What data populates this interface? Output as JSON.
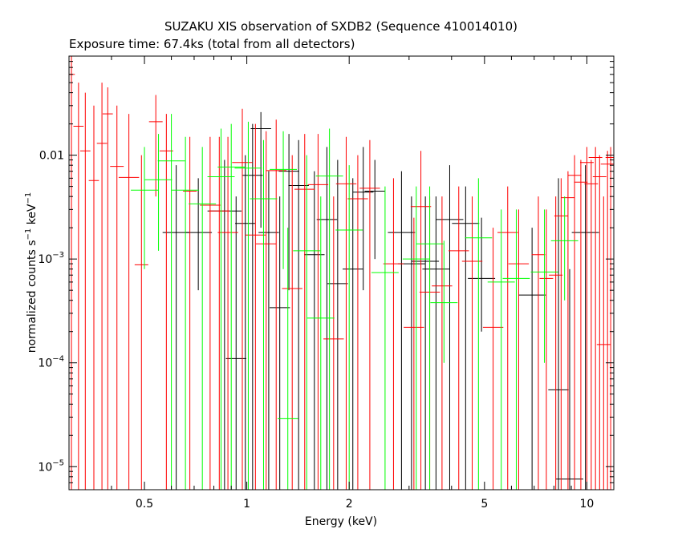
{
  "chart_data": {
    "type": "scatter",
    "title": "SUZAKU XIS observation of SXDB2 (Sequence 410014010)",
    "subtitle": "Exposure time: 67.4ks (total from all detectors)",
    "xlabel": "Energy (keV)",
    "ylabel": {
      "base": "normalized counts s",
      "exp1": "−1",
      "mid": " keV",
      "exp2": "−1"
    },
    "x_scale": "log",
    "y_scale": "log",
    "xlim": [
      0.3,
      12
    ],
    "ylim": [
      6e-06,
      0.09
    ],
    "x_ticks": [
      {
        "value": 0.5,
        "label": "0.5"
      },
      {
        "value": 1,
        "label": "1"
      },
      {
        "value": 2,
        "label": "2"
      },
      {
        "value": 5,
        "label": "5"
      },
      {
        "value": 10,
        "label": "10"
      }
    ],
    "y_ticks": [
      {
        "value": 1e-05,
        "base": "10",
        "exp": "−5"
      },
      {
        "value": 0.0001,
        "base": "10",
        "exp": "−4"
      },
      {
        "value": 0.001,
        "base": "10",
        "exp": "−3"
      },
      {
        "value": 0.01,
        "base": "0.01",
        "exp": ""
      }
    ],
    "grid": false,
    "series": [
      {
        "color": "#000000",
        "points": [
          [
            0.62,
            0.0018,
            0.04,
            null,
            0.008
          ],
          [
            0.72,
            0.0018,
            0.04,
            0.0005,
            0.006
          ],
          [
            0.86,
            0.0029,
            0.05,
            null,
            0.009
          ],
          [
            0.93,
            0.00011,
            0.03,
            null,
            0.004
          ],
          [
            0.99,
            0.0022,
            0.03,
            null,
            0.01
          ],
          [
            1.04,
            0.0064,
            0.03,
            null,
            0.02
          ],
          [
            1.1,
            0.018,
            0.03,
            0.002,
            0.026
          ],
          [
            1.16,
            0.0018,
            0.03,
            null,
            0.007
          ],
          [
            1.25,
            0.00034,
            0.03,
            null,
            0.004
          ],
          [
            1.33,
            0.007,
            0.03,
            0.0005,
            0.016
          ],
          [
            1.42,
            0.0051,
            0.03,
            null,
            0.014
          ],
          [
            1.58,
            0.0011,
            0.03,
            null,
            0.007
          ],
          [
            1.72,
            0.0024,
            0.03,
            null,
            0.012
          ],
          [
            1.85,
            0.00058,
            0.03,
            null,
            0.009
          ],
          [
            2.05,
            0.0008,
            0.03,
            null,
            0.006
          ],
          [
            2.2,
            0.0044,
            0.03,
            0.0005,
            0.012
          ],
          [
            2.38,
            0.0045,
            0.03,
            0.001,
            0.009
          ],
          [
            2.85,
            0.0018,
            0.04,
            null,
            0.007
          ],
          [
            3.05,
            0.0009,
            0.04,
            null,
            0.004
          ],
          [
            3.35,
            0.00095,
            0.04,
            null,
            0.004
          ],
          [
            3.6,
            0.0008,
            0.04,
            null,
            0.004
          ],
          [
            3.95,
            0.0024,
            0.04,
            null,
            0.008
          ],
          [
            4.4,
            0.0022,
            0.04,
            null,
            0.005
          ],
          [
            4.9,
            0.00065,
            0.04,
            0.0002,
            0.0025
          ],
          [
            6.9,
            0.00045,
            0.04,
            null,
            0.002
          ],
          [
            8.25,
            5.5e-05,
            0.03,
            null,
            0.006
          ],
          [
            8.9,
            7.6e-06,
            0.04,
            null,
            0.0008
          ],
          [
            9.9,
            0.0018,
            0.04,
            null,
            0.008
          ]
        ]
      },
      {
        "color": "#ff0000",
        "points": [
          [
            0.305,
            0.06,
            0.01,
            null,
            0.09
          ],
          [
            0.32,
            0.019,
            0.015,
            null,
            0.05
          ],
          [
            0.335,
            0.011,
            0.015,
            null,
            0.04
          ],
          [
            0.355,
            0.0057,
            0.015,
            null,
            0.03
          ],
          [
            0.375,
            0.013,
            0.015,
            null,
            0.05
          ],
          [
            0.39,
            0.025,
            0.015,
            null,
            0.045
          ],
          [
            0.415,
            0.0078,
            0.02,
            null,
            0.03
          ],
          [
            0.45,
            0.0061,
            0.03,
            null,
            0.025
          ],
          [
            0.49,
            0.00088,
            0.02,
            null,
            0.01
          ],
          [
            0.54,
            0.021,
            0.02,
            0.004,
            0.038
          ],
          [
            0.58,
            0.011,
            0.02,
            null,
            0.025
          ],
          [
            0.68,
            0.0045,
            0.02,
            null,
            0.015
          ],
          [
            0.78,
            0.0033,
            0.03,
            null,
            0.015
          ],
          [
            0.83,
            0.0029,
            0.03,
            null,
            0.015
          ],
          [
            0.88,
            0.0018,
            0.03,
            null,
            0.015
          ],
          [
            0.97,
            0.0085,
            0.03,
            null,
            0.028
          ],
          [
            1.06,
            0.0017,
            0.03,
            null,
            0.02
          ],
          [
            1.14,
            0.0014,
            0.03,
            null,
            0.017
          ],
          [
            1.22,
            0.0071,
            0.03,
            null,
            0.022
          ],
          [
            1.36,
            0.00052,
            0.03,
            null,
            0.01
          ],
          [
            1.48,
            0.0047,
            0.03,
            null,
            0.016
          ],
          [
            1.62,
            0.0052,
            0.03,
            null,
            0.016
          ],
          [
            1.8,
            0.00017,
            0.03,
            null,
            0.004
          ],
          [
            1.96,
            0.0053,
            0.03,
            null,
            0.015
          ],
          [
            2.12,
            0.0038,
            0.03,
            null,
            0.01
          ],
          [
            2.3,
            0.0048,
            0.03,
            null,
            0.014
          ],
          [
            2.7,
            0.0009,
            0.03,
            null,
            0.006
          ],
          [
            3.1,
            0.00022,
            0.03,
            null,
            0.0025
          ],
          [
            3.25,
            0.0032,
            0.03,
            null,
            0.011
          ],
          [
            3.45,
            0.00048,
            0.03,
            null,
            0.004
          ],
          [
            3.75,
            0.00055,
            0.03,
            null,
            0.004
          ],
          [
            4.2,
            0.0012,
            0.03,
            null,
            0.005
          ],
          [
            4.6,
            0.00095,
            0.03,
            null,
            0.004
          ],
          [
            5.3,
            0.00022,
            0.03,
            null,
            0.002
          ],
          [
            5.85,
            0.0018,
            0.03,
            null,
            0.005
          ],
          [
            6.3,
            0.0009,
            0.03,
            null,
            0.003
          ],
          [
            7.2,
            0.0011,
            0.02,
            null,
            0.004
          ],
          [
            7.6,
            0.00065,
            0.02,
            null,
            0.003
          ],
          [
            8.1,
            0.0007,
            0.02,
            null,
            0.004
          ],
          [
            8.4,
            0.0026,
            0.02,
            null,
            0.006
          ],
          [
            8.8,
            0.0039,
            0.02,
            null,
            0.007
          ],
          [
            9.2,
            0.0064,
            0.02,
            null,
            0.01
          ],
          [
            9.6,
            0.0055,
            0.02,
            null,
            0.009
          ],
          [
            10.0,
            0.0085,
            0.02,
            null,
            0.012
          ],
          [
            10.3,
            0.0053,
            0.02,
            null,
            0.009
          ],
          [
            10.6,
            0.0095,
            0.02,
            null,
            0.012
          ],
          [
            10.9,
            0.0062,
            0.02,
            null,
            0.01
          ],
          [
            11.2,
            0.00015,
            0.02,
            null,
            0.004
          ],
          [
            11.5,
            0.0082,
            0.02,
            null,
            0.011
          ],
          [
            11.75,
            0.0095,
            0.015,
            null,
            0.012
          ]
        ]
      },
      {
        "color": "#00ff00",
        "points": [
          [
            0.5,
            0.0046,
            0.04,
            0.0008,
            0.012
          ],
          [
            0.55,
            0.0058,
            0.04,
            0.0012,
            0.016
          ],
          [
            0.6,
            0.0088,
            0.04,
            null,
            0.025
          ],
          [
            0.66,
            0.0046,
            0.04,
            null,
            0.015
          ],
          [
            0.74,
            0.0034,
            0.04,
            null,
            0.012
          ],
          [
            0.84,
            0.0062,
            0.04,
            null,
            0.018
          ],
          [
            0.9,
            0.0077,
            0.04,
            null,
            0.02
          ],
          [
            1.01,
            0.0075,
            0.04,
            null,
            0.021
          ],
          [
            1.12,
            0.0038,
            0.04,
            null,
            0.014
          ],
          [
            1.28,
            0.0073,
            0.04,
            0.0008,
            0.017
          ],
          [
            1.32,
            2.9e-05,
            0.03,
            null,
            0.002
          ],
          [
            1.5,
            0.0012,
            0.04,
            null,
            0.01
          ],
          [
            1.65,
            0.00027,
            0.04,
            null,
            0.004
          ],
          [
            1.75,
            0.0063,
            0.04,
            null,
            0.018
          ],
          [
            2.0,
            0.0019,
            0.04,
            null,
            0.008
          ],
          [
            2.55,
            0.00074,
            0.04,
            null,
            0.005
          ],
          [
            3.15,
            0.001,
            0.04,
            null,
            0.005
          ],
          [
            3.45,
            0.0014,
            0.04,
            null,
            0.005
          ],
          [
            3.8,
            0.00038,
            0.04,
            0.0001,
            0.0015
          ],
          [
            4.8,
            0.0016,
            0.04,
            null,
            0.006
          ],
          [
            5.6,
            0.0006,
            0.04,
            null,
            0.003
          ],
          [
            6.2,
            0.00065,
            0.04,
            null,
            0.003
          ],
          [
            7.5,
            0.00075,
            0.04,
            0.0001,
            0.003
          ],
          [
            8.6,
            0.0015,
            0.04,
            0.0004,
            0.004
          ]
        ]
      }
    ],
    "axis_color": "#000000"
  }
}
